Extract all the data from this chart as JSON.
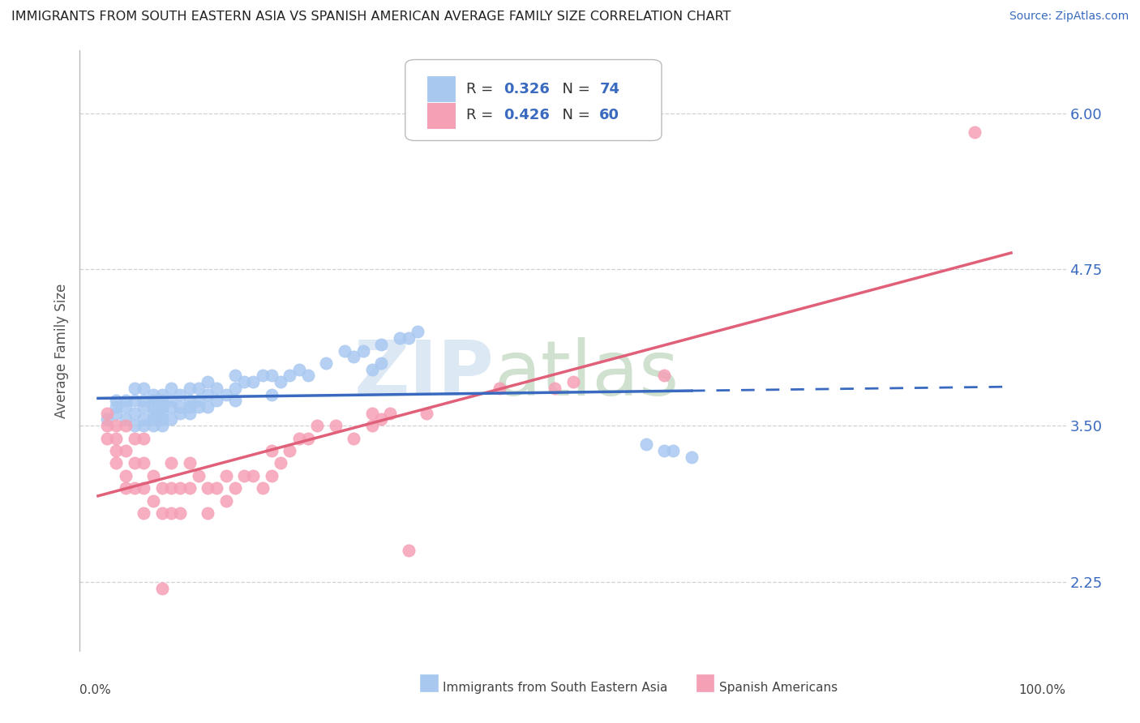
{
  "title": "IMMIGRANTS FROM SOUTH EASTERN ASIA VS SPANISH AMERICAN AVERAGE FAMILY SIZE CORRELATION CHART",
  "source": "Source: ZipAtlas.com",
  "ylabel": "Average Family Size",
  "series1_label": "Immigrants from South Eastern Asia",
  "series2_label": "Spanish Americans",
  "R1": 0.326,
  "N1": 74,
  "R2": 0.426,
  "N2": 60,
  "blue_color": "#a8c8f0",
  "blue_line_color": "#3a6abf",
  "pink_color": "#f5a0b5",
  "pink_line_color": "#e0607a",
  "yticks": [
    2.25,
    3.5,
    4.75,
    6.0
  ],
  "ylim": [
    1.7,
    6.5
  ],
  "xlim": [
    -0.02,
    1.06
  ],
  "watermark_zip": "ZIP",
  "watermark_atlas": "atlas",
  "blue_x": [
    0.01,
    0.02,
    0.02,
    0.02,
    0.03,
    0.03,
    0.03,
    0.04,
    0.04,
    0.04,
    0.04,
    0.05,
    0.05,
    0.05,
    0.05,
    0.05,
    0.06,
    0.06,
    0.06,
    0.06,
    0.06,
    0.06,
    0.07,
    0.07,
    0.07,
    0.07,
    0.07,
    0.07,
    0.08,
    0.08,
    0.08,
    0.08,
    0.09,
    0.09,
    0.09,
    0.1,
    0.1,
    0.1,
    0.1,
    0.11,
    0.11,
    0.11,
    0.12,
    0.12,
    0.12,
    0.13,
    0.13,
    0.14,
    0.15,
    0.15,
    0.15,
    0.16,
    0.17,
    0.18,
    0.19,
    0.19,
    0.2,
    0.21,
    0.22,
    0.23,
    0.25,
    0.27,
    0.28,
    0.29,
    0.3,
    0.31,
    0.31,
    0.33,
    0.34,
    0.35,
    0.63,
    0.65,
    0.6,
    0.62
  ],
  "blue_y": [
    3.55,
    3.6,
    3.65,
    3.7,
    3.55,
    3.65,
    3.7,
    3.5,
    3.6,
    3.7,
    3.8,
    3.5,
    3.55,
    3.65,
    3.7,
    3.8,
    3.5,
    3.55,
    3.6,
    3.65,
    3.7,
    3.75,
    3.5,
    3.55,
    3.6,
    3.65,
    3.7,
    3.75,
    3.55,
    3.65,
    3.7,
    3.8,
    3.6,
    3.65,
    3.75,
    3.6,
    3.65,
    3.7,
    3.8,
    3.65,
    3.7,
    3.8,
    3.65,
    3.75,
    3.85,
    3.7,
    3.8,
    3.75,
    3.7,
    3.8,
    3.9,
    3.85,
    3.85,
    3.9,
    3.75,
    3.9,
    3.85,
    3.9,
    3.95,
    3.9,
    4.0,
    4.1,
    4.05,
    4.1,
    3.95,
    4.0,
    4.15,
    4.2,
    4.2,
    4.25,
    3.3,
    3.25,
    3.35,
    3.3
  ],
  "pink_x": [
    0.01,
    0.01,
    0.01,
    0.02,
    0.02,
    0.02,
    0.02,
    0.03,
    0.03,
    0.03,
    0.03,
    0.04,
    0.04,
    0.04,
    0.05,
    0.05,
    0.05,
    0.05,
    0.06,
    0.06,
    0.07,
    0.07,
    0.08,
    0.08,
    0.08,
    0.09,
    0.09,
    0.1,
    0.1,
    0.11,
    0.12,
    0.12,
    0.13,
    0.14,
    0.14,
    0.15,
    0.16,
    0.17,
    0.18,
    0.19,
    0.19,
    0.2,
    0.21,
    0.22,
    0.23,
    0.24,
    0.26,
    0.28,
    0.3,
    0.3,
    0.31,
    0.32,
    0.34,
    0.36,
    0.44,
    0.5,
    0.52,
    0.62,
    0.96,
    0.07
  ],
  "pink_y": [
    3.4,
    3.5,
    3.6,
    3.2,
    3.3,
    3.4,
    3.5,
    3.0,
    3.1,
    3.3,
    3.5,
    3.0,
    3.2,
    3.4,
    2.8,
    3.0,
    3.2,
    3.4,
    2.9,
    3.1,
    2.8,
    3.0,
    2.8,
    3.0,
    3.2,
    2.8,
    3.0,
    3.0,
    3.2,
    3.1,
    2.8,
    3.0,
    3.0,
    2.9,
    3.1,
    3.0,
    3.1,
    3.1,
    3.0,
    3.1,
    3.3,
    3.2,
    3.3,
    3.4,
    3.4,
    3.5,
    3.5,
    3.4,
    3.5,
    3.6,
    3.55,
    3.6,
    2.5,
    3.6,
    3.8,
    3.8,
    3.85,
    3.9,
    5.85,
    2.2
  ]
}
